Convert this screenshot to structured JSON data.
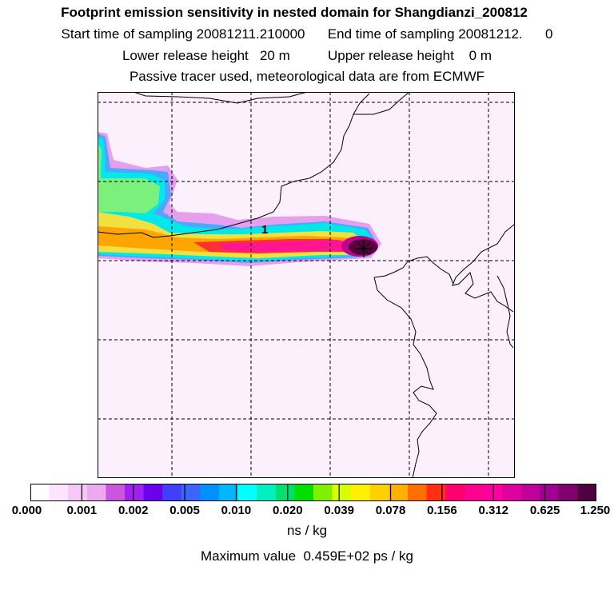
{
  "header": {
    "title": "Footprint emission sensitivity in nested domain for Shangdianzi_200812",
    "sampling": "Start time of sampling 20081211.210000      End time of sampling 20081212.      0",
    "heights": "Lower release height   20 m          Upper release height    0 m",
    "tracer": "Passive tracer used, meteorological data are from ECMWF"
  },
  "map": {
    "background_color": "#fdf0fd",
    "contour_label": "1",
    "release_marker": "star-icon"
  },
  "colorbar": {
    "colors": [
      "#ffffff",
      "#fce4fc",
      "#f5c8f5",
      "#eeaaee",
      "#cc55dd",
      "#a020f0",
      "#6a00ee",
      "#4040f8",
      "#3c64ff",
      "#0090ff",
      "#00b8ff",
      "#00ffff",
      "#00f0c0",
      "#00e070",
      "#00e000",
      "#80f000",
      "#d8ff00",
      "#fff000",
      "#ffd000",
      "#ffb000",
      "#ff7000",
      "#ff3010",
      "#ff0070",
      "#ff0090",
      "#ff00a0",
      "#e000a0",
      "#c0009a",
      "#a00090",
      "#80006e",
      "#500040"
    ],
    "tick_labels": [
      "0.000",
      "0.001",
      "0.002",
      "0.005",
      "0.010",
      "0.020",
      "0.039",
      "0.078",
      "0.156",
      "0.312",
      "0.625",
      "1.250"
    ],
    "unit": "ns / kg"
  },
  "footer": {
    "max_value": "Maximum value  0.459E+02 ps / kg"
  }
}
